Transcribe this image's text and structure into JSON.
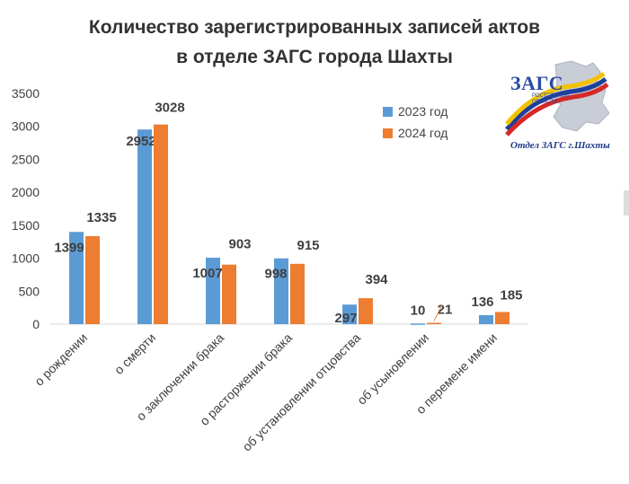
{
  "title": {
    "line1": "Количество зарегистрированных записей актов",
    "line2": "в отделе ЗАГС  города Шахты"
  },
  "logo": {
    "word": "ЗАГС",
    "subtitle": "РОСТОВСКОЙ ОБЛАСТИ",
    "caption": "Отдел ЗАГС г.Шахты"
  },
  "colors": {
    "series_2023": "#5b9bd5",
    "series_2024": "#ed7d31",
    "axis": "#d9d9d9",
    "text": "#404040"
  },
  "chart_data": {
    "type": "bar",
    "title": "Количество зарегистрированных записей актов в отделе ЗАГС  города Шахты",
    "categories": [
      "о рождении",
      "о смерти",
      "о заключении брака",
      "о расторжении брака",
      "об установлении отцовства",
      "об усыновлении",
      "о перемене имени"
    ],
    "series": [
      {
        "name": "2023 год",
        "values": [
          1399,
          2952,
          1007,
          998,
          297,
          10,
          136
        ]
      },
      {
        "name": "2024 год",
        "values": [
          1335,
          3028,
          903,
          915,
          394,
          21,
          185
        ]
      }
    ],
    "yticks": [
      "0",
      "500",
      "1000",
      "1500",
      "2000",
      "2500",
      "3000",
      "3500"
    ],
    "ylim": [
      0,
      3500
    ],
    "grid": false,
    "legend": "top-right"
  }
}
